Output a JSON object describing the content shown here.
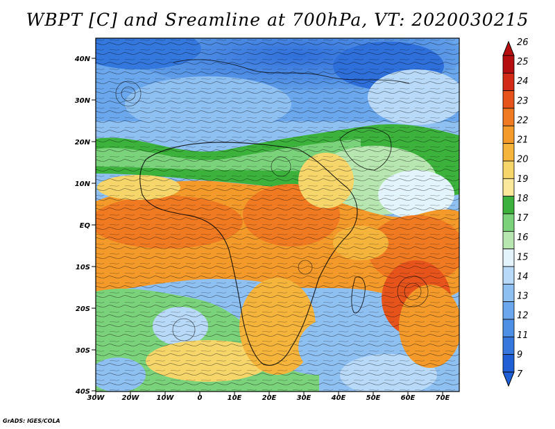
{
  "title": "WBPT [C] and Sreamline at 700hPa, VT: 2020030215",
  "credit": "GrADS: IGES/COLA",
  "lat_labels": [
    "40N",
    "30N",
    "20N",
    "10N",
    "EQ",
    "10S",
    "20S",
    "30S",
    "40S"
  ],
  "lon_labels": [
    "30W",
    "20W",
    "10W",
    "0",
    "10E",
    "20E",
    "30E",
    "40E",
    "50E",
    "60E",
    "70E"
  ],
  "colorbar": {
    "labels": [
      "7",
      "9",
      "11",
      "12",
      "13",
      "14",
      "15",
      "16",
      "17",
      "18",
      "19",
      "20",
      "21",
      "22",
      "23",
      "24",
      "25",
      "26"
    ],
    "colors": [
      "#1f5fd6",
      "#3478de",
      "#4c90e6",
      "#6aa7ec",
      "#8fc0f2",
      "#b8daf8",
      "#e4f4fc",
      "#b8e6b0",
      "#7ad27a",
      "#3cb23c",
      "#fbe89a",
      "#f6d66a",
      "#f5b43c",
      "#f39a2a",
      "#ef7a22",
      "#e6541c",
      "#d22a14",
      "#b40e0e"
    ]
  }
}
